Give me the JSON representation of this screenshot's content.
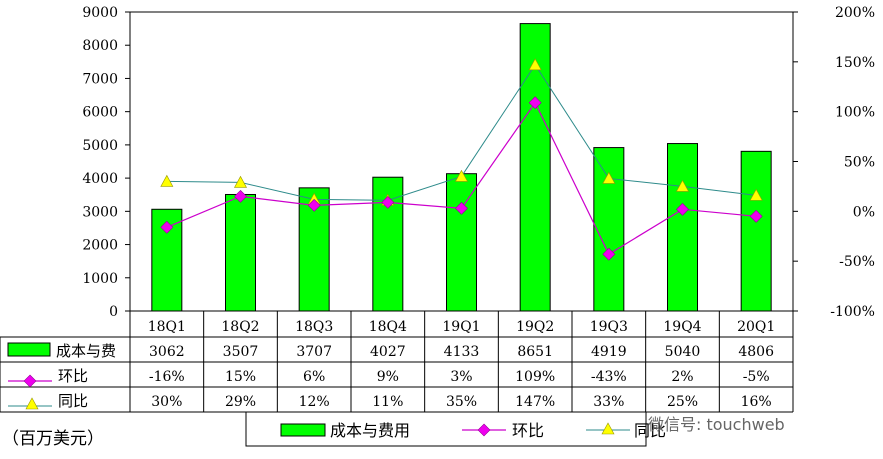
{
  "chart_data": {
    "type": "bar+line",
    "categories": [
      "18Q1",
      "18Q2",
      "18Q3",
      "18Q4",
      "19Q1",
      "19Q2",
      "19Q3",
      "19Q4",
      "20Q1"
    ],
    "series": [
      {
        "name": "成本与费用",
        "kind": "bar",
        "axis": "left",
        "color": "#00ff00",
        "values": [
          3062,
          3507,
          3707,
          4027,
          4133,
          8651,
          4919,
          5040,
          4806
        ]
      },
      {
        "name": "环比",
        "kind": "line",
        "axis": "right",
        "color": "#cc00cc",
        "values": [
          -16,
          15,
          6,
          9,
          3,
          109,
          -43,
          2,
          -5
        ]
      },
      {
        "name": "同比",
        "kind": "line",
        "axis": "right",
        "color": "#2e8b8b",
        "marker_color": "#ffff00",
        "values": [
          30,
          29,
          12,
          11,
          35,
          147,
          33,
          25,
          16
        ]
      }
    ],
    "left_axis": {
      "min": 0,
      "max": 9000,
      "step": 1000,
      "ticks": [
        "0",
        "1000",
        "2000",
        "3000",
        "4000",
        "5000",
        "6000",
        "7000",
        "8000",
        "9000"
      ]
    },
    "right_axis": {
      "min": -100,
      "max": 200,
      "step": 50,
      "unit": "%",
      "ticks": [
        "-100%",
        "-50%",
        "0%",
        "50%",
        "100%",
        "150%",
        "200%"
      ]
    },
    "table": {
      "row_labels": [
        "成本与费",
        "环比",
        "同比"
      ],
      "rows": [
        [
          "3062",
          "3507",
          "3707",
          "4027",
          "4133",
          "8651",
          "4919",
          "5040",
          "4806"
        ],
        [
          "-16%",
          "15%",
          "6%",
          "9%",
          "3%",
          "109%",
          "-43%",
          "2%",
          "-5%"
        ],
        [
          "30%",
          "29%",
          "12%",
          "11%",
          "35%",
          "147%",
          "33%",
          "25%",
          "16%"
        ]
      ]
    },
    "legend": [
      "成本与费用",
      "环比",
      "同比"
    ],
    "unit_label": "（百万美元）",
    "watermark": "微信号: touchweb"
  }
}
